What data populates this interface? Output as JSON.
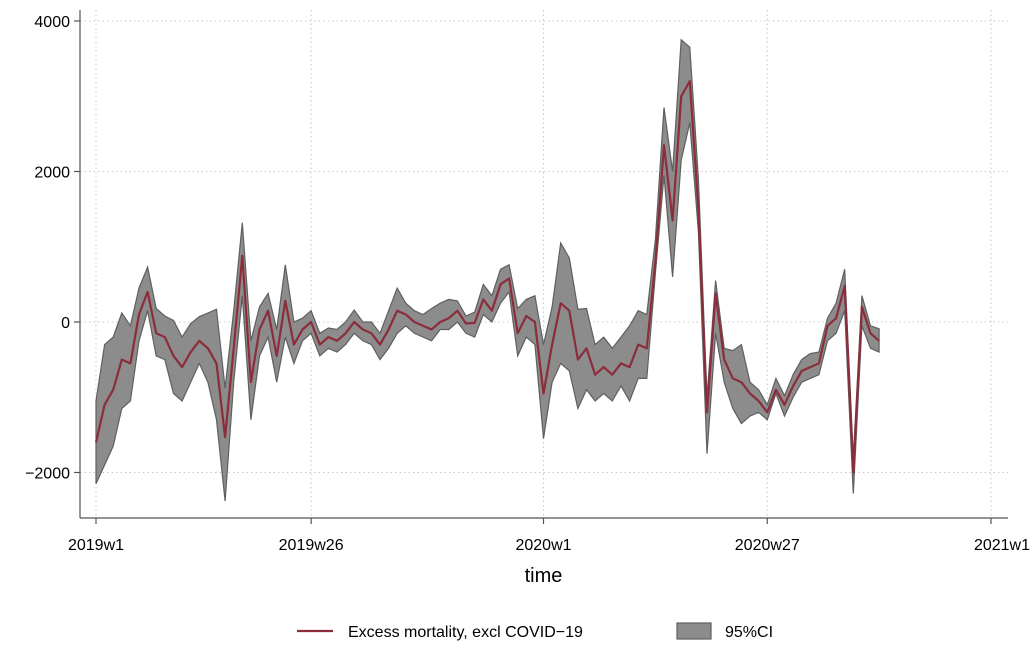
{
  "chart_data": {
    "type": "area",
    "title": "",
    "xlabel": "time",
    "ylabel": "",
    "xlim": [
      1,
      105
    ],
    "ylim": [
      -2600,
      4000
    ],
    "yticks": [
      -2000,
      0,
      2000,
      4000
    ],
    "yticklabels": [
      "−2000",
      "0",
      "2000",
      "4000"
    ],
    "xticks": [
      1,
      26,
      53,
      79,
      105
    ],
    "xticklabels": [
      "2019w1",
      "2019w26",
      "2020w1",
      "2020w27",
      "2021w1"
    ],
    "grid": true,
    "legend_position": "bottom",
    "x": [
      1,
      2,
      3,
      4,
      5,
      6,
      7,
      8,
      9,
      10,
      11,
      12,
      13,
      14,
      15,
      16,
      17,
      18,
      19,
      20,
      21,
      22,
      23,
      24,
      25,
      26,
      27,
      28,
      29,
      30,
      31,
      32,
      33,
      34,
      35,
      36,
      37,
      38,
      39,
      40,
      41,
      42,
      43,
      44,
      45,
      46,
      47,
      48,
      49,
      50,
      51,
      52,
      53,
      54,
      55,
      56,
      57,
      58,
      59,
      60,
      61,
      62,
      63,
      64,
      65,
      66,
      67,
      68,
      69,
      70,
      71,
      72,
      73,
      74,
      75,
      76,
      77,
      78,
      79,
      80,
      81,
      82,
      83,
      84,
      85,
      86,
      87,
      88,
      89,
      90,
      91,
      92
    ],
    "series": [
      {
        "name": "Excess mortality, excl COVID−19",
        "color": "#8b2d3a",
        "values": [
          -1600,
          -1100,
          -900,
          -500,
          -550,
          100,
          400,
          -150,
          -200,
          -450,
          -600,
          -400,
          -250,
          -350,
          -550,
          -1530,
          -350,
          880,
          -800,
          -100,
          150,
          -450,
          280,
          -300,
          -100,
          0,
          -300,
          -200,
          -250,
          -150,
          0,
          -100,
          -150,
          -300,
          -100,
          150,
          100,
          0,
          -50,
          -100,
          0,
          50,
          150,
          -20,
          -10,
          300,
          150,
          500,
          580,
          -150,
          80,
          0,
          -950,
          -300,
          250,
          150,
          -500,
          -350,
          -700,
          -600,
          -700,
          -550,
          -600,
          -300,
          -350,
          800,
          2350,
          1350,
          3000,
          3200,
          1500,
          -1200,
          380,
          -500,
          -750,
          -800,
          -950,
          -1050,
          -1200,
          -900,
          -1100,
          -850,
          -650,
          -600,
          -550,
          -50,
          50,
          480,
          -2000,
          200,
          -150,
          -250
        ]
      },
      {
        "name": "95%CI",
        "color": "#8c8c8c",
        "lower": [
          -2150,
          -1900,
          -1650,
          -1150,
          -1050,
          -250,
          150,
          -450,
          -500,
          -950,
          -1050,
          -800,
          -550,
          -800,
          -1300,
          -2380,
          -800,
          350,
          -1300,
          -450,
          -200,
          -800,
          -200,
          -550,
          -250,
          -150,
          -450,
          -350,
          -400,
          -300,
          -150,
          -250,
          -300,
          -500,
          -350,
          -150,
          -50,
          -150,
          -200,
          -250,
          -100,
          -100,
          0,
          -150,
          -200,
          100,
          0,
          250,
          400,
          -450,
          -200,
          -300,
          -1550,
          -800,
          -550,
          -650,
          -1150,
          -900,
          -1050,
          -950,
          -1050,
          -850,
          -1050,
          -750,
          -750,
          650,
          1950,
          600,
          2150,
          2650,
          1200,
          -1750,
          -150,
          -800,
          -1150,
          -1350,
          -1250,
          -1200,
          -1300,
          -950,
          -1250,
          -1000,
          -800,
          -750,
          -700,
          -250,
          -150,
          150,
          -2280,
          -50,
          -350,
          -400
        ],
        "upper": [
          -1050,
          -300,
          -200,
          120,
          -50,
          450,
          730,
          180,
          80,
          20,
          -200,
          -20,
          70,
          120,
          170,
          -880,
          150,
          1320,
          -250,
          200,
          380,
          -100,
          760,
          0,
          50,
          150,
          -150,
          -80,
          -100,
          0,
          160,
          0,
          0,
          -150,
          150,
          450,
          250,
          150,
          100,
          180,
          250,
          300,
          280,
          80,
          130,
          500,
          350,
          700,
          760,
          180,
          300,
          350,
          -300,
          200,
          1050,
          850,
          170,
          180,
          -300,
          -200,
          -350,
          -200,
          -50,
          150,
          100,
          1100,
          2850,
          2000,
          3750,
          3650,
          1900,
          -1000,
          550,
          -350,
          -380,
          -300,
          -800,
          -900,
          -1100,
          -750,
          -980,
          -700,
          -500,
          -420,
          -400,
          50,
          250,
          700,
          -1800,
          350,
          -50,
          -90
        ]
      }
    ]
  }
}
